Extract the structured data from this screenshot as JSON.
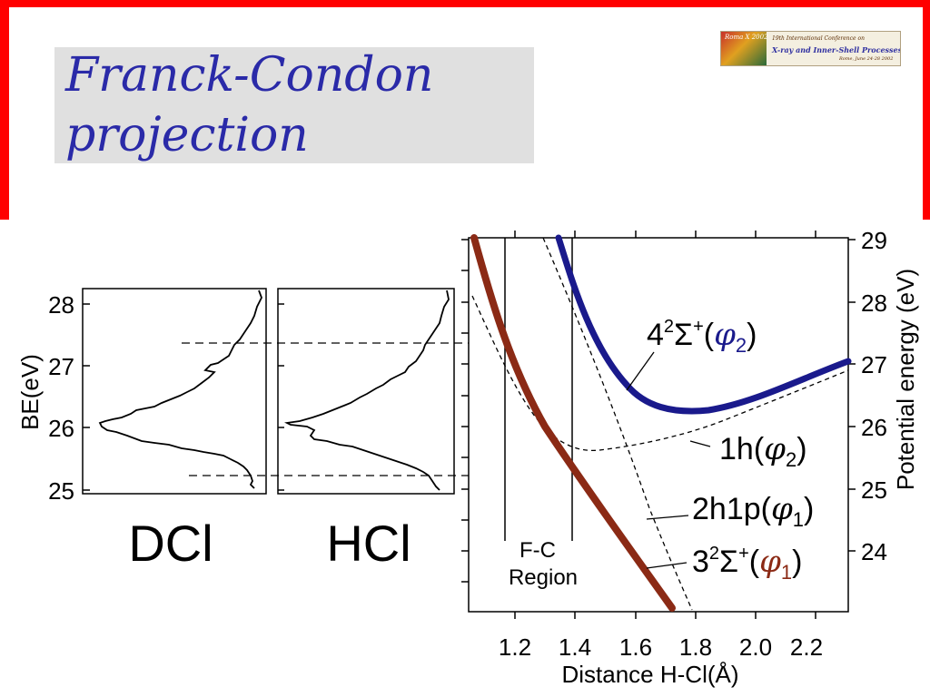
{
  "slide": {
    "title_line1": "Franck-Condon",
    "title_line2": "projection",
    "frame_color": "#ff0000",
    "title_color": "#2a2aa8"
  },
  "logo": {
    "tag": "Roma X 2002",
    "line1": "19th International Conference on",
    "line2": "X-ray and Inner-Shell Processes",
    "line3": "Rome, June 24-28 2002"
  },
  "spectra": {
    "ylabel": "BE(eV)",
    "yticks": [
      "28",
      "27",
      "26",
      "25"
    ],
    "panels": [
      {
        "name": "DCl",
        "label": "DCl"
      },
      {
        "name": "HCl",
        "label": "HCl"
      }
    ]
  },
  "potential": {
    "xlabel": "Distance H-Cl(Å)",
    "ylabel": "Potential energy (eV)",
    "xticks": [
      "1.2",
      "1.4",
      "1.6",
      "1.8",
      "2.0",
      "2.2"
    ],
    "yticks": [
      "29",
      "28",
      "27",
      "26",
      "25",
      "24"
    ],
    "region_label_1": "F-C",
    "region_label_2": "Region",
    "curves": [
      {
        "name": "4²Σ⁺(φ₂)",
        "color": "#1a1a8c"
      },
      {
        "name": "1h(φ₂)",
        "color": "#000000"
      },
      {
        "name": "2h1p(φ₁)",
        "color": "#000000"
      },
      {
        "name": "3²Σ⁺(φ₁)",
        "color": "#8b2a15"
      }
    ],
    "label_4": {
      "a": "4",
      "b": "2",
      "c": "Σ",
      "d": "+",
      "e": "(",
      "f": "φ",
      "g": "2",
      "h": ")"
    },
    "label_1h": {
      "a": "1h(",
      "f": "φ",
      "g": "2",
      "h": ")"
    },
    "label_2h1p": {
      "a": "2h1p(",
      "f": "φ",
      "g": "1",
      "h": ")"
    },
    "label_3": {
      "a": "3",
      "b": "2",
      "c": "Σ",
      "d": "+",
      "e": "(",
      "f": "φ",
      "g": "1",
      "h": ")"
    }
  }
}
